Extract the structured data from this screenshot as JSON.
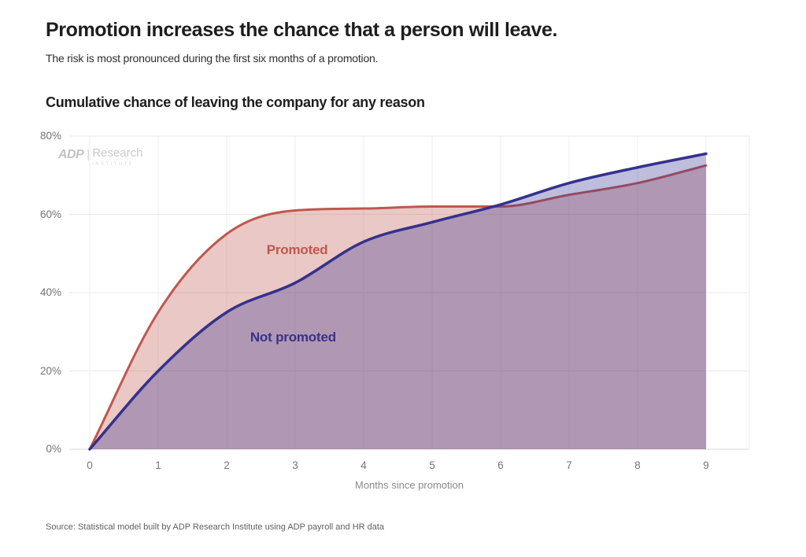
{
  "page": {
    "title": "Promotion increases the chance that a person will leave.",
    "subtitle": "The risk is most pronounced during the first six months of a promotion.",
    "source": "Source: Statistical model built by ADP Research Institute using ADP payroll and HR data"
  },
  "watermark": {
    "brand": "ADP",
    "divider": "|",
    "name": "Research",
    "sub": "INSTITUTE"
  },
  "chart_data": {
    "type": "area",
    "title": "Cumulative chance of leaving the company for any reason",
    "xlabel": "Months since promotion",
    "ylabel": "",
    "x": [
      0,
      1,
      2,
      3,
      4,
      5,
      6,
      7,
      8,
      9
    ],
    "x_ticks": [
      "0",
      "1",
      "2",
      "3",
      "4",
      "5",
      "6",
      "7",
      "8",
      "9"
    ],
    "y_ticks": [
      "0%",
      "20%",
      "40%",
      "60%",
      "80%"
    ],
    "xlim": [
      0,
      9
    ],
    "ylim": [
      0,
      80
    ],
    "grid": true,
    "legend_position": "inline-labels",
    "series": [
      {
        "name": "Promoted",
        "values": [
          0,
          35,
          55,
          61,
          61.5,
          62,
          62,
          65,
          68,
          72.5
        ],
        "line_color": "#c0574f",
        "fill_color": "rgba(192,87,79,0.33)",
        "label_color": "#c0564d",
        "label_pos": {
          "month": 3.03,
          "pct": 50.9
        }
      },
      {
        "name": "Not promoted",
        "values": [
          0,
          20,
          35,
          42.5,
          53,
          58,
          62.5,
          68,
          72,
          75.5
        ],
        "line_color": "#34318e",
        "fill_color": "rgba(52,49,142,0.32)",
        "label_color": "#38338a",
        "label_pos": {
          "month": 2.97,
          "pct": 28.5
        }
      }
    ],
    "grid_color": "#e8e8e8",
    "baseline_color": "#d8d8d8"
  }
}
